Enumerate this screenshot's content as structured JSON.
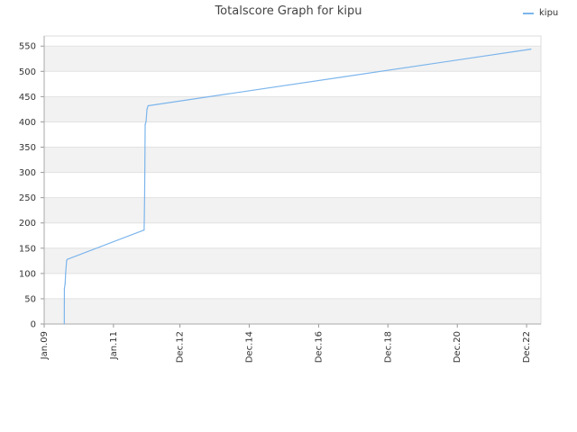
{
  "chart_data": {
    "type": "line",
    "title": "Totalscore Graph for kipu",
    "xlabel": "",
    "ylabel": "",
    "ylim": [
      0,
      570
    ],
    "yticks": [
      0,
      50,
      100,
      150,
      200,
      250,
      300,
      350,
      400,
      450,
      500,
      550
    ],
    "xlim": [
      "2009-01-01",
      "2023-05-01"
    ],
    "xticks": [
      {
        "label": "Jan.09",
        "date": "2009-01-01"
      },
      {
        "label": "Jan.11",
        "date": "2011-01-01"
      },
      {
        "label": "Dec.12",
        "date": "2012-12-01"
      },
      {
        "label": "Dec.14",
        "date": "2014-12-01"
      },
      {
        "label": "Dec.16",
        "date": "2016-12-01"
      },
      {
        "label": "Dec.18",
        "date": "2018-12-01"
      },
      {
        "label": "Dec.20",
        "date": "2020-12-01"
      },
      {
        "label": "Dec.22",
        "date": "2022-12-01"
      }
    ],
    "grid": true,
    "legend_position": "top-right",
    "series": [
      {
        "name": "kipu",
        "color": "#7cb5ec",
        "points": [
          {
            "x": "2009-08-01",
            "y": 0
          },
          {
            "x": "2009-08-02",
            "y": 70
          },
          {
            "x": "2009-08-10",
            "y": 80
          },
          {
            "x": "2009-08-15",
            "y": 100
          },
          {
            "x": "2009-08-25",
            "y": 125
          },
          {
            "x": "2009-09-01",
            "y": 128
          },
          {
            "x": "2011-11-20",
            "y": 186
          },
          {
            "x": "2011-11-25",
            "y": 250
          },
          {
            "x": "2011-12-01",
            "y": 395
          },
          {
            "x": "2011-12-10",
            "y": 400
          },
          {
            "x": "2011-12-20",
            "y": 425
          },
          {
            "x": "2012-01-01",
            "y": 432
          },
          {
            "x": "2023-01-15",
            "y": 544
          }
        ]
      }
    ]
  }
}
